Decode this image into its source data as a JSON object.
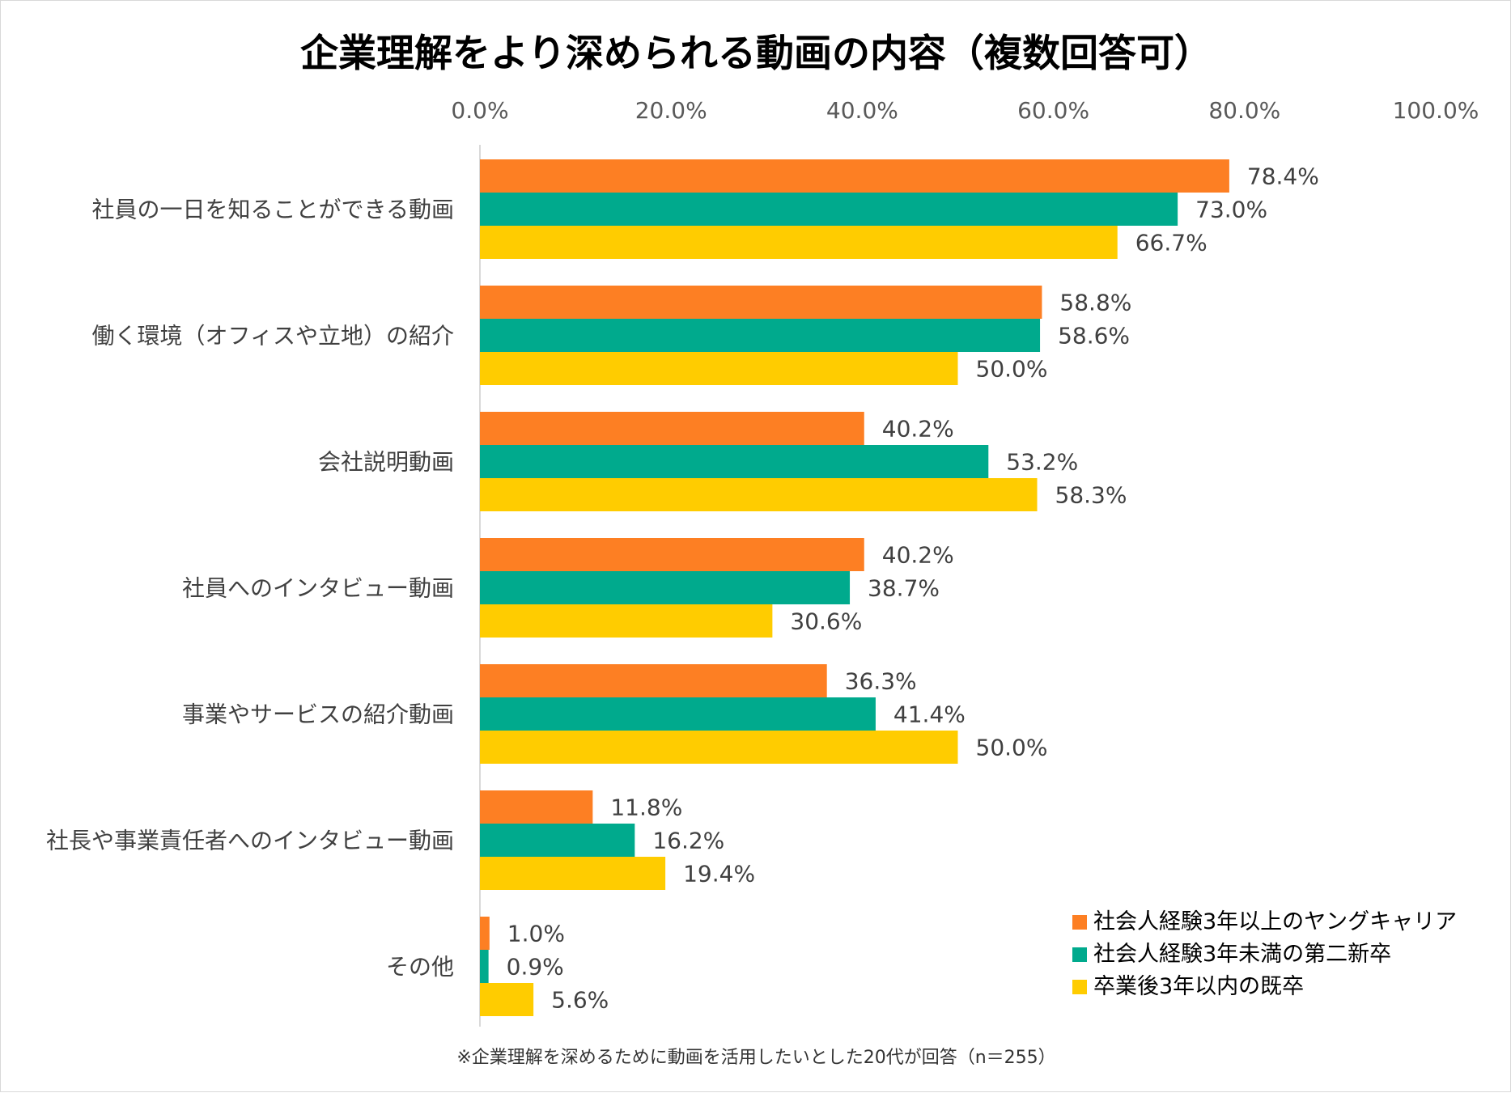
{
  "chart_data": {
    "type": "bar",
    "orientation": "horizontal",
    "title": "企業理解をより深められる動画の内容（複数回答可）",
    "xlabel": "",
    "ylabel": "",
    "xlim": [
      0,
      100
    ],
    "ticks": [
      0,
      20,
      40,
      60,
      80,
      100
    ],
    "tick_labels": [
      "0.0%",
      "20.0%",
      "40.0%",
      "60.0%",
      "80.0%",
      "100.0%"
    ],
    "axis_position": "top",
    "legend_position": "bottom-right",
    "grid": false,
    "categories": [
      "社員の一日を知ることができる動画",
      "働く環境（オフィスや立地）の紹介",
      "会社説明動画",
      "社員へのインタビュー動画",
      "事業やサービスの紹介動画",
      "社長や事業責任者へのインタビュー動画",
      "その他"
    ],
    "series": [
      {
        "name": "社会人経験3年以上のヤングキャリア",
        "color": "#fd7f23",
        "values": [
          78.4,
          58.8,
          40.2,
          40.2,
          36.3,
          11.8,
          1.0
        ],
        "labels": [
          "78.4%",
          "58.8%",
          "40.2%",
          "40.2%",
          "36.3%",
          "11.8%",
          "1.0%"
        ]
      },
      {
        "name": "社会人経験3年未満の第二新卒",
        "color": "#00aa8d",
        "values": [
          73.0,
          58.6,
          53.2,
          38.7,
          41.4,
          16.2,
          0.9
        ],
        "labels": [
          "73.0%",
          "58.6%",
          "53.2%",
          "38.7%",
          "41.4%",
          "16.2%",
          "0.9%"
        ]
      },
      {
        "name": "卒業後3年以内の既卒",
        "color": "#ffcc00",
        "values": [
          66.7,
          50.0,
          58.3,
          30.6,
          50.0,
          19.4,
          5.6
        ],
        "labels": [
          "66.7%",
          "50.0%",
          "58.3%",
          "30.6%",
          "50.0%",
          "19.4%",
          "5.6%"
        ]
      }
    ],
    "footnote": "※企業理解を深めるために動画を活用したいとした20代が回答（n＝255）"
  }
}
